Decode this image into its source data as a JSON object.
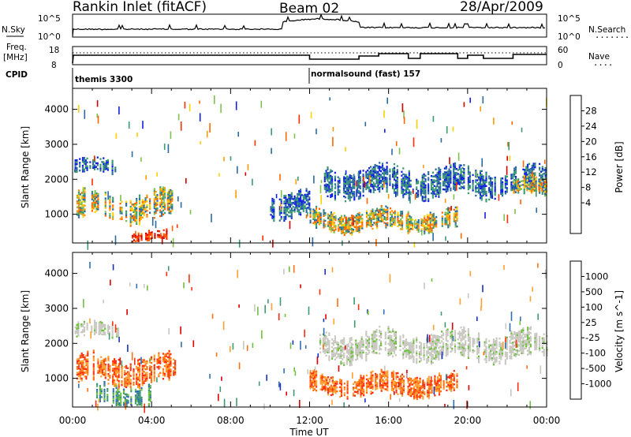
{
  "header": {
    "title": "Rankin Inlet (fitACF)",
    "beam": "Beam 02",
    "date": "28/Apr/2009"
  },
  "nsky_panel": {
    "left_label": "N.Sky",
    "right_label": "N.Search",
    "right_legend_dots": "........",
    "left_ticks": [
      "10^5",
      "10^0"
    ],
    "right_ticks": [
      "10^5",
      "10^0"
    ]
  },
  "freq_panel": {
    "left_label_line1": "Freq.",
    "left_label_line2": "[MHz]",
    "right_label": "Nave",
    "right_legend_dots": "....",
    "left_ticks": [
      "18",
      "8"
    ],
    "right_ticks": [
      "60",
      "0"
    ]
  },
  "cpid": {
    "label": "CPID",
    "segments": [
      {
        "start_hour": 0,
        "text": "themis 3300"
      },
      {
        "start_hour": 12,
        "text": "normalsound (fast) 157"
      }
    ]
  },
  "time_axis": {
    "label": "Time UT",
    "ticks": [
      "00:00",
      "04:00",
      "08:00",
      "12:00",
      "16:00",
      "20:00",
      "00:00"
    ],
    "range_hours": [
      0,
      24
    ]
  },
  "chart_data": [
    {
      "type": "heatmap",
      "quantity": "Power",
      "ylabel": "Slant Range [km]",
      "ylim": [
        180,
        4600
      ],
      "yticks": [
        "1000",
        "2000",
        "3000",
        "4000"
      ],
      "xlabel": "",
      "colorbar": {
        "label": "Power [dB]",
        "ticks": [
          "28",
          "24",
          "20",
          "16",
          "12",
          "8",
          "4"
        ],
        "colors": [
          "#d00000",
          "#ff3000",
          "#ff6600",
          "#ff9a00",
          "#ffd000",
          "#80c050",
          "#3a9a70",
          "#2a6aa0",
          "#1020e0"
        ]
      },
      "echo_regions": [
        {
          "t_start": 0.1,
          "t_end": 2.3,
          "range_start": 2150,
          "range_end": 2550,
          "level": "low"
        },
        {
          "t_start": 0.2,
          "t_end": 5.2,
          "range_start": 800,
          "range_end": 1600,
          "level": "high"
        },
        {
          "t_start": 3.0,
          "t_end": 4.8,
          "range_start": 200,
          "range_end": 500,
          "level": "max"
        },
        {
          "t_start": 10.0,
          "t_end": 12.0,
          "range_start": 900,
          "range_end": 1600,
          "level": "low"
        },
        {
          "t_start": 12.0,
          "t_end": 19.5,
          "range_start": 500,
          "range_end": 1100,
          "level": "high"
        },
        {
          "t_start": 12.5,
          "t_end": 24.0,
          "range_start": 1500,
          "range_end": 2300,
          "level": "low"
        },
        {
          "t_start": 22.3,
          "t_end": 24.0,
          "range_start": 1500,
          "range_end": 2000,
          "level": "high"
        }
      ]
    },
    {
      "type": "heatmap",
      "quantity": "Velocity",
      "ylabel": "Slant Range [km]",
      "ylim": [
        180,
        4600
      ],
      "yticks": [
        "1000",
        "2000",
        "3000",
        "4000"
      ],
      "xlabel": "Time UT",
      "colorbar": {
        "label": "Velocity [m s^-1]",
        "ticks": [
          "1000",
          "500",
          "100",
          "25",
          "-25",
          "-100",
          "-500",
          "-1000"
        ],
        "colors": [
          "#1a30c0",
          "#2f6fb0",
          "#3f9a70",
          "#70c040",
          "#c8c8c0",
          "#ffa030",
          "#ff7010",
          "#ff3010",
          "#e00000"
        ]
      },
      "echo_regions": [
        {
          "t_start": 0.1,
          "t_end": 2.3,
          "range_start": 2150,
          "range_end": 2550,
          "level": "ground"
        },
        {
          "t_start": 0.2,
          "t_end": 5.2,
          "range_start": 800,
          "range_end": 1600,
          "level": "away"
        },
        {
          "t_start": 1.2,
          "t_end": 4.0,
          "range_start": 180,
          "range_end": 800,
          "level": "toward"
        },
        {
          "t_start": 12.0,
          "t_end": 19.5,
          "range_start": 500,
          "range_end": 1100,
          "level": "away"
        },
        {
          "t_start": 12.5,
          "t_end": 24.0,
          "range_start": 1500,
          "range_end": 2300,
          "level": "ground"
        }
      ]
    }
  ]
}
